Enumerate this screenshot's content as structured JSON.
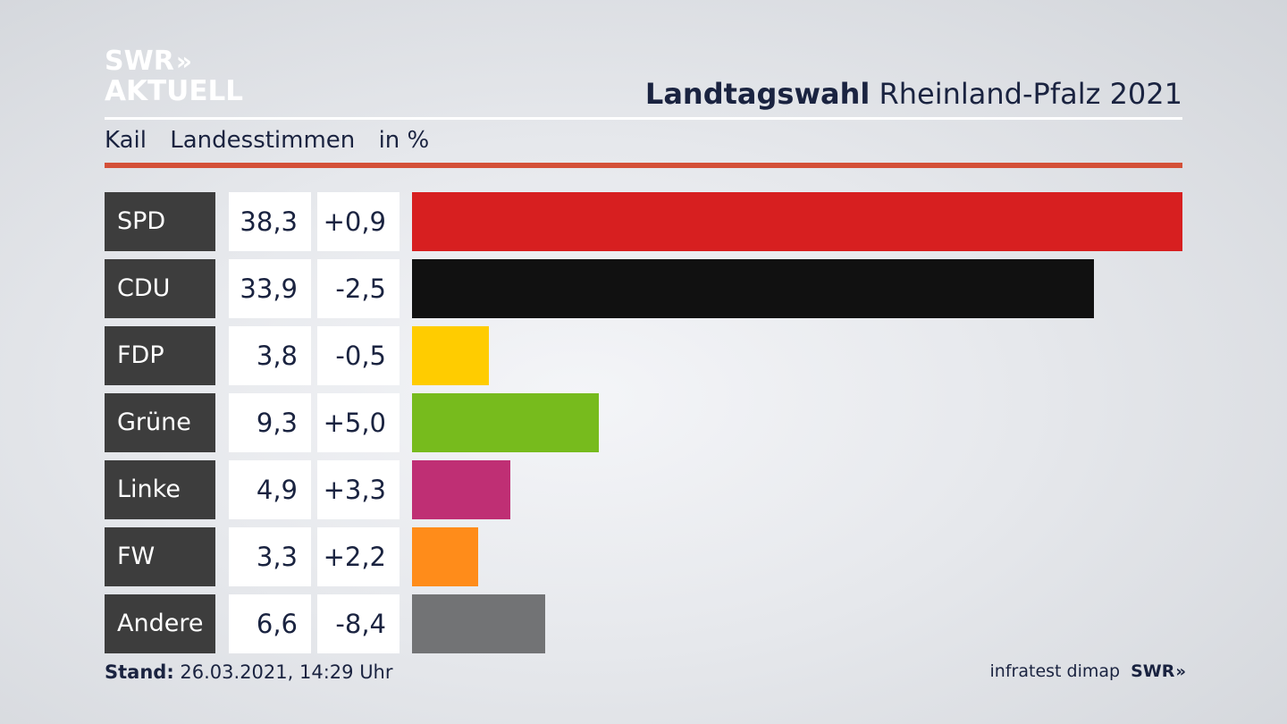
{
  "brand": {
    "logo_line1": "SWR",
    "logo_arrows": "»",
    "logo_line2": "AKTUELL"
  },
  "header": {
    "title_bold": "Landtagswahl",
    "title_rest": "Rheinland-Pfalz 2021"
  },
  "subtitle": {
    "place": "Kail",
    "measure": "Landesstimmen",
    "unit": "in %"
  },
  "colors": {
    "accent_rule": "#d45038",
    "label_bg": "#3d3d3d"
  },
  "chart_data": {
    "type": "bar",
    "orientation": "horizontal",
    "categories": [
      "SPD",
      "CDU",
      "FDP",
      "Grüne",
      "Linke",
      "FW",
      "Andere"
    ],
    "values": [
      38.3,
      33.9,
      3.8,
      9.3,
      4.9,
      3.3,
      6.6
    ],
    "value_labels": [
      "38,3",
      "33,9",
      "3,8",
      "9,3",
      "4,9",
      "3,3",
      "6,6"
    ],
    "differences": [
      0.9,
      -2.5,
      -0.5,
      5.0,
      3.3,
      2.2,
      -8.4
    ],
    "difference_labels": [
      "+0,9",
      "-2,5",
      "-0,5",
      "+5,0",
      "+3,3",
      "+2,2",
      "-8,4"
    ],
    "colors": [
      "#d71f20",
      "#111111",
      "#ffcc00",
      "#77bb1d",
      "#bf2f74",
      "#ff8c1a",
      "#727375"
    ],
    "grid": false
  },
  "footer": {
    "stand_label": "Stand:",
    "stand_value": "26.03.2021, 14:29 Uhr",
    "source": "infratest dimap",
    "source_brand": "SWR",
    "source_arrows": "»"
  }
}
